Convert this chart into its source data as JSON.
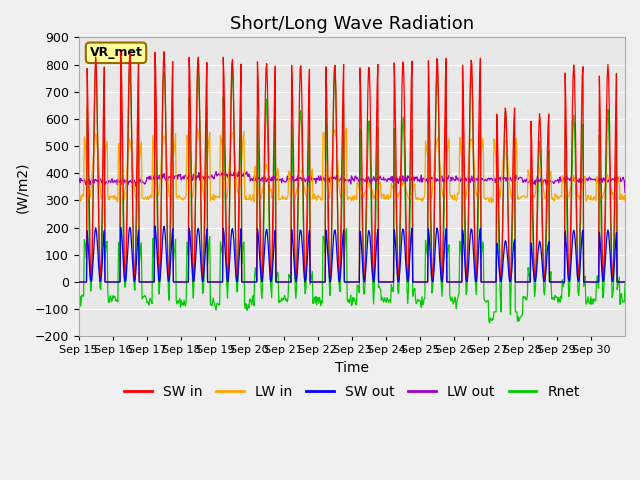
{
  "title": "Short/Long Wave Radiation",
  "ylabel": "(W/m2)",
  "xlabel": "Time",
  "ylim": [
    -200,
    900
  ],
  "yticks": [
    -200,
    -100,
    0,
    100,
    200,
    300,
    400,
    500,
    600,
    700,
    800,
    900
  ],
  "station_label": "VR_met",
  "x_tick_labels": [
    "Sep 15",
    "Sep 16",
    "Sep 17",
    "Sep 18",
    "Sep 19",
    "Sep 20",
    "Sep 21",
    "Sep 22",
    "Sep 23",
    "Sep 24",
    "Sep 25",
    "Sep 26",
    "Sep 27",
    "Sep 28",
    "Sep 29",
    "Sep 30"
  ],
  "series": {
    "SW_in": {
      "color": "#FF0000",
      "label": "SW in"
    },
    "LW_in": {
      "color": "#FFA500",
      "label": "LW in"
    },
    "SW_out": {
      "color": "#0000FF",
      "label": "SW out"
    },
    "LW_out": {
      "color": "#9900CC",
      "label": "LW out"
    },
    "Rnet": {
      "color": "#00CC00",
      "label": "Rnet"
    }
  },
  "background_color": "#E8E8E8",
  "title_fontsize": 13,
  "axis_fontsize": 10,
  "tick_fontsize": 9,
  "legend_fontsize": 10
}
